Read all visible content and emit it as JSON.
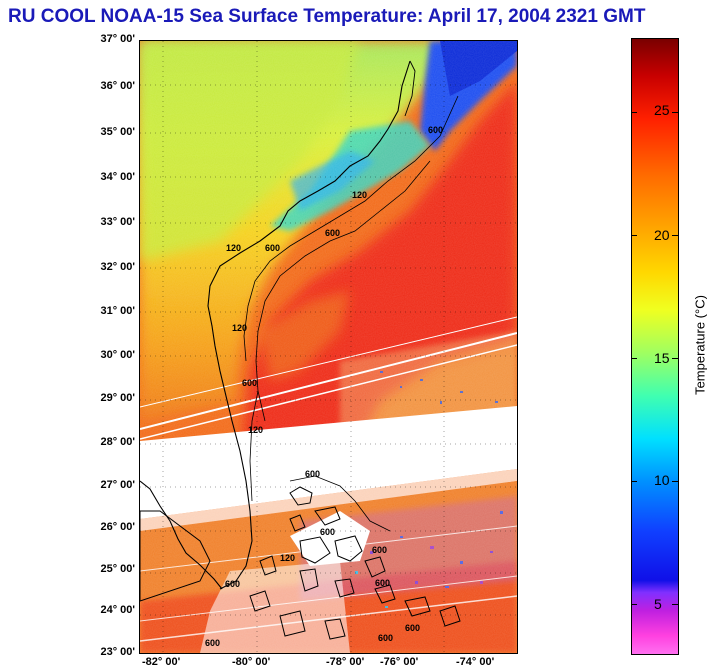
{
  "title": "RU COOL  NOAA-15  Sea Surface Temperature:  April 17, 2004 2321 GMT",
  "lat_labels": [
    "37° 00'",
    "36° 00'",
    "35° 00'",
    "34° 00'",
    "33° 00'",
    "32° 00'",
    "31° 00'",
    "30° 00'",
    "29° 00'",
    "28° 00'",
    "27° 00'",
    "26° 00'",
    "25° 00'",
    "24° 00'",
    "23° 00'"
  ],
  "lon_labels": [
    "-82° 00'",
    "-80° 00'",
    "-78° 00'",
    "-76° 00'",
    "-74° 00'"
  ],
  "colorbar": {
    "title": "Temperature (°C)",
    "ticks": [
      "25",
      "20",
      "15",
      "10",
      "5"
    ],
    "tick_values": [
      25,
      20,
      15,
      10,
      5
    ],
    "range": [
      3,
      28
    ]
  },
  "isobath_labels": [
    "600",
    "120",
    "600",
    "120",
    "600",
    "120",
    "600",
    "120",
    "600",
    "600",
    "600",
    "120",
    "600",
    "600",
    "600",
    "600",
    "600"
  ],
  "colors": {
    "title": "#1a1ab8",
    "coast": "#000000"
  }
}
